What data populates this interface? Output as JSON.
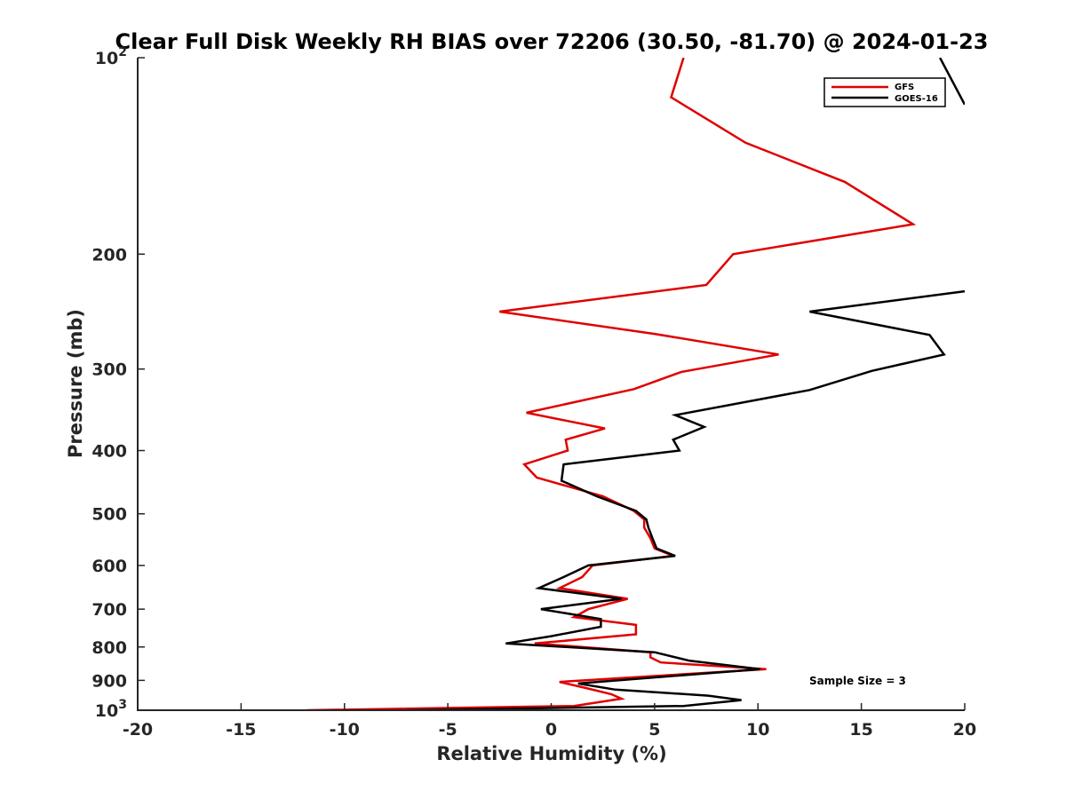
{
  "chart_data": {
    "type": "line",
    "title": "Clear Full Disk Weekly RH BIAS over 72206 (30.50, -81.70) @ 2024-01-23",
    "xlabel": "Relative Humidity (%)",
    "ylabel": "Pressure (mb)",
    "xlim": [
      -20,
      20
    ],
    "ylim": [
      100,
      1000
    ],
    "y_scale": "log",
    "y_reversed": true,
    "x_ticks": [
      "-20",
      "-15",
      "-10",
      "-5",
      "0",
      "5",
      "10",
      "15",
      "20"
    ],
    "y_ticks": [
      {
        "value": 100,
        "base": "10",
        "exp": "2"
      },
      {
        "value": 200,
        "label": "200"
      },
      {
        "value": 300,
        "label": "300"
      },
      {
        "value": 400,
        "label": "400"
      },
      {
        "value": 500,
        "label": "500"
      },
      {
        "value": 600,
        "label": "600"
      },
      {
        "value": 700,
        "label": "700"
      },
      {
        "value": 800,
        "label": "800"
      },
      {
        "value": 900,
        "label": "900"
      },
      {
        "value": 1000,
        "base": "10",
        "exp": "3"
      }
    ],
    "grid": false,
    "legend_position": "top-right",
    "annotation": "Sample Size = 3",
    "series": [
      {
        "name": "GFS",
        "color": "#e00000",
        "points": [
          [
            6.4,
            100
          ],
          [
            5.8,
            115
          ],
          [
            9.4,
            135
          ],
          [
            14.2,
            155
          ],
          [
            17.5,
            180
          ],
          [
            8.8,
            200
          ],
          [
            7.5,
            223
          ],
          [
            -2.5,
            245
          ],
          [
            5.0,
            265
          ],
          [
            11.0,
            285
          ],
          [
            6.3,
            303
          ],
          [
            4.0,
            322
          ],
          [
            -1.2,
            350
          ],
          [
            2.6,
            370
          ],
          [
            0.7,
            385
          ],
          [
            0.8,
            400
          ],
          [
            -1.3,
            420
          ],
          [
            -0.7,
            440
          ],
          [
            2.5,
            470
          ],
          [
            4.0,
            495
          ],
          [
            4.5,
            510
          ],
          [
            4.5,
            525
          ],
          [
            4.8,
            545
          ],
          [
            5.0,
            565
          ],
          [
            5.9,
            580
          ],
          [
            2.0,
            600
          ],
          [
            1.5,
            625
          ],
          [
            0.4,
            650
          ],
          [
            3.7,
            675
          ],
          [
            1.8,
            700
          ],
          [
            1.1,
            720
          ],
          [
            4.1,
            740
          ],
          [
            4.1,
            765
          ],
          [
            -0.8,
            790
          ],
          [
            4.8,
            815
          ],
          [
            4.8,
            830
          ],
          [
            5.3,
            845
          ],
          [
            10.4,
            865
          ],
          [
            0.4,
            905
          ],
          [
            1.7,
            925
          ],
          [
            2.9,
            945
          ],
          [
            3.4,
            960
          ],
          [
            1.1,
            985
          ],
          [
            -11.8,
            1000
          ]
        ]
      },
      {
        "name": "GOES-16",
        "color": "#000000",
        "points": [
          [
            18.8,
            100
          ],
          [
            20.0,
            118
          ],
          [
            null,
            null
          ],
          [
            20.0,
            228
          ],
          [
            12.5,
            245
          ],
          [
            18.3,
            266
          ],
          [
            19.0,
            285
          ],
          [
            15.5,
            302
          ],
          [
            12.5,
            323
          ],
          [
            6.0,
            353
          ],
          [
            7.4,
            368
          ],
          [
            5.9,
            385
          ],
          [
            6.2,
            400
          ],
          [
            0.6,
            420
          ],
          [
            0.5,
            445
          ],
          [
            2.2,
            470
          ],
          [
            4.1,
            495
          ],
          [
            4.6,
            510
          ],
          [
            4.7,
            525
          ],
          [
            4.9,
            545
          ],
          [
            5.1,
            565
          ],
          [
            6.0,
            580
          ],
          [
            1.8,
            600
          ],
          [
            0.6,
            625
          ],
          [
            -0.6,
            650
          ],
          [
            3.4,
            675
          ],
          [
            -0.5,
            700
          ],
          [
            2.4,
            725
          ],
          [
            2.4,
            745
          ],
          [
            0.0,
            770
          ],
          [
            -2.2,
            790
          ],
          [
            5.0,
            815
          ],
          [
            6.7,
            840
          ],
          [
            10.1,
            865
          ],
          [
            1.3,
            910
          ],
          [
            3.1,
            930
          ],
          [
            7.6,
            950
          ],
          [
            9.2,
            965
          ],
          [
            6.4,
            985
          ],
          [
            -7.0,
            1000
          ]
        ]
      }
    ]
  }
}
